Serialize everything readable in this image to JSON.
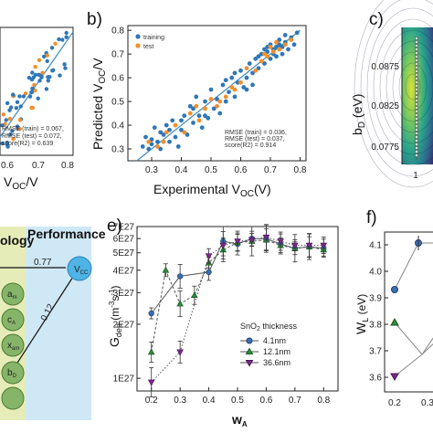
{
  "panels": {
    "b": "b)",
    "c": "c)",
    "e": "e)",
    "f": "f)"
  },
  "colors": {
    "training": "#2f77b8",
    "test": "#f28e2b",
    "fit": "#4a8fc4",
    "node": "#86b56a",
    "node_stroke": "#4b7a31",
    "vcc": "#4fb3e6",
    "perf_bg": "#cfe8f5",
    "onto_bg": "#e6ecb8",
    "s41": "#3d6fb0",
    "s121": "#2e8b3d",
    "s366": "#7a2a8a"
  },
  "panel_a": {
    "stats": [
      "RMSE (train) = 0.067,",
      "RMSE (test) = 0.072,",
      "score(R2) = 0.639"
    ],
    "xticks": [
      "0.6",
      "0.7",
      "0.8"
    ],
    "xlabel": "V",
    "xlabel_sub": "OC",
    "xlabel_tail": "/V"
  },
  "panel_d": {
    "left_label": "ology",
    "perf_label": "Performance",
    "vcc_label": "V",
    "vcc_sub": "CC",
    "edge_top": "0.77",
    "edge_diag": "0.12",
    "nodes": [
      "a_m",
      "c_A",
      "x_am",
      "b_D"
    ]
  },
  "panel_c": {
    "ylabel": "b",
    "ylabel_sub": "D",
    "ylabel_tail": " (eV)",
    "yticks": [
      "0.0875",
      "0.0825",
      "0.0775"
    ],
    "xtick": "1"
  },
  "panel_f": {
    "ylabel": "W",
    "ylabel_sub": "L",
    "ylabel_tail": " (eV)",
    "yticks": [
      "4.1",
      "4.0",
      "3.9",
      "3.8",
      "3.7",
      "3.6"
    ],
    "xticks": [
      "0.2",
      "0.3"
    ]
  },
  "chart_data": [
    {
      "type": "scatter",
      "id": "b",
      "title": "",
      "xlabel": "Experimental V",
      "xlabel_sub": "OC",
      "xlabel_tail": "(V)",
      "ylabel": "Predicted V",
      "ylabel_sub": "OC",
      "ylabel_tail": "/V",
      "xlim": [
        0.22,
        0.82
      ],
      "ylim": [
        0.25,
        0.82
      ],
      "xticks": [
        0.3,
        0.4,
        0.5,
        0.6,
        0.7,
        0.8
      ],
      "yticks": [
        0.3,
        0.4,
        0.5,
        0.6,
        0.7,
        0.8
      ],
      "legend": [
        "training",
        "test"
      ],
      "legend_position": "top-left",
      "stats": [
        "RMSE (train) = 0.036,",
        "RMSE (test) = 0.037,",
        "score(R2) = 0.914"
      ],
      "fit_line": [
        [
          0.25,
          0.25
        ],
        [
          0.8,
          0.8
        ]
      ],
      "series": [
        {
          "name": "training",
          "points": [
            [
              0.27,
              0.31
            ],
            [
              0.28,
              0.35
            ],
            [
              0.29,
              0.3
            ],
            [
              0.3,
              0.34
            ],
            [
              0.31,
              0.39
            ],
            [
              0.32,
              0.33
            ],
            [
              0.33,
              0.3
            ],
            [
              0.34,
              0.36
            ],
            [
              0.35,
              0.4
            ],
            [
              0.36,
              0.33
            ],
            [
              0.37,
              0.42
            ],
            [
              0.38,
              0.35
            ],
            [
              0.39,
              0.31
            ],
            [
              0.4,
              0.38
            ],
            [
              0.41,
              0.44
            ],
            [
              0.42,
              0.36
            ],
            [
              0.43,
              0.48
            ],
            [
              0.44,
              0.41
            ],
            [
              0.45,
              0.52
            ],
            [
              0.46,
              0.44
            ],
            [
              0.47,
              0.39
            ],
            [
              0.48,
              0.5
            ],
            [
              0.49,
              0.43
            ],
            [
              0.5,
              0.55
            ],
            [
              0.51,
              0.47
            ],
            [
              0.52,
              0.51
            ],
            [
              0.53,
              0.45
            ],
            [
              0.54,
              0.57
            ],
            [
              0.55,
              0.5
            ],
            [
              0.56,
              0.54
            ],
            [
              0.57,
              0.6
            ],
            [
              0.58,
              0.52
            ],
            [
              0.59,
              0.58
            ],
            [
              0.6,
              0.63
            ],
            [
              0.61,
              0.56
            ],
            [
              0.62,
              0.6
            ],
            [
              0.63,
              0.66
            ],
            [
              0.64,
              0.62
            ],
            [
              0.65,
              0.68
            ],
            [
              0.66,
              0.64
            ],
            [
              0.67,
              0.7
            ],
            [
              0.68,
              0.66
            ],
            [
              0.69,
              0.71
            ],
            [
              0.7,
              0.68
            ],
            [
              0.71,
              0.72
            ],
            [
              0.72,
              0.69
            ],
            [
              0.73,
              0.74
            ],
            [
              0.74,
              0.7
            ],
            [
              0.75,
              0.75
            ],
            [
              0.76,
              0.72
            ],
            [
              0.77,
              0.77
            ],
            [
              0.78,
              0.74
            ],
            [
              0.79,
              0.79
            ],
            [
              0.68,
              0.72
            ],
            [
              0.7,
              0.74
            ],
            [
              0.72,
              0.73
            ],
            [
              0.66,
              0.69
            ],
            [
              0.73,
              0.76
            ],
            [
              0.69,
              0.73
            ],
            [
              0.75,
              0.78
            ],
            [
              0.64,
              0.57
            ],
            [
              0.62,
              0.55
            ],
            [
              0.58,
              0.62
            ],
            [
              0.55,
              0.59
            ],
            [
              0.48,
              0.44
            ],
            [
              0.44,
              0.47
            ],
            [
              0.4,
              0.42
            ],
            [
              0.36,
              0.38
            ],
            [
              0.33,
              0.37
            ],
            [
              0.3,
              0.32
            ],
            [
              0.71,
              0.7
            ],
            [
              0.74,
              0.73
            ]
          ]
        },
        {
          "name": "test",
          "points": [
            [
              0.29,
              0.33
            ],
            [
              0.32,
              0.31
            ],
            [
              0.35,
              0.37
            ],
            [
              0.38,
              0.4
            ],
            [
              0.41,
              0.37
            ],
            [
              0.43,
              0.45
            ],
            [
              0.46,
              0.42
            ],
            [
              0.48,
              0.47
            ],
            [
              0.5,
              0.51
            ],
            [
              0.52,
              0.48
            ],
            [
              0.55,
              0.52
            ],
            [
              0.57,
              0.56
            ],
            [
              0.6,
              0.58
            ],
            [
              0.62,
              0.64
            ],
            [
              0.65,
              0.63
            ],
            [
              0.67,
              0.67
            ],
            [
              0.69,
              0.69
            ],
            [
              0.71,
              0.71
            ],
            [
              0.73,
              0.72
            ],
            [
              0.75,
              0.74
            ],
            [
              0.77,
              0.76
            ],
            [
              0.68,
              0.7
            ],
            [
              0.7,
              0.73
            ],
            [
              0.72,
              0.75
            ],
            [
              0.58,
              0.55
            ],
            [
              0.53,
              0.5
            ],
            [
              0.45,
              0.48
            ],
            [
              0.34,
              0.33
            ]
          ]
        }
      ]
    },
    {
      "type": "line",
      "id": "e",
      "title": "",
      "xlabel": "w",
      "xlabel_sub": "A",
      "ylabel": "G",
      "ylabel_sub": "dep",
      "ylabel_tail": " (m",
      "ylabel_sup1": "-3",
      "ylabel_mid": "s",
      "ylabel_sup2": "-1",
      "ylabel_end": ")",
      "xlim": [
        0.15,
        0.85
      ],
      "yscale": "log",
      "ylim": [
        8.5e+26,
        7e+27
      ],
      "xticks": [
        "0.2",
        "0.3",
        "0.4",
        "0.5",
        "0.6",
        "0.7",
        "0.8"
      ],
      "yticks": [
        {
          "v": 1e+27,
          "label": "1E27"
        },
        {
          "v": 2e+27,
          "label": "2E27"
        },
        {
          "v": 3e+27,
          "label": "3E27"
        },
        {
          "v": 4e+27,
          "label": "4E27"
        },
        {
          "v": 5e+27,
          "label": "5E27"
        },
        {
          "v": 6e+27,
          "label": "6E27"
        },
        {
          "v": 7e+27,
          "label": "7E27"
        }
      ],
      "legend_title": "SnO",
      "legend_title_sub": "2",
      "legend_title_tail": " thickness",
      "legend_position": "center-right",
      "series": [
        {
          "name": "4.1nm",
          "marker": "circle",
          "x": [
            0.2,
            0.3,
            0.4,
            0.45,
            0.5,
            0.55,
            0.6,
            0.65,
            0.7,
            0.75,
            0.8
          ],
          "y": [
            2.3e+27,
            3.7e+27,
            3.9e+27,
            5.8e+27,
            5.6e+27,
            6e+27,
            6e+27,
            5.6e+27,
            5.3e+27,
            5.4e+27,
            5.3e+27
          ]
        },
        {
          "name": "12.1nm",
          "marker": "triangle-up",
          "x": [
            0.2,
            0.25,
            0.3,
            0.35,
            0.4,
            0.45,
            0.5,
            0.55,
            0.6,
            0.65,
            0.7,
            0.75,
            0.8
          ],
          "y": [
            1.4e+27,
            4e+27,
            2.6e+27,
            2.9e+27,
            4.4e+27,
            5.2e+27,
            5.7e+27,
            5.8e+27,
            5.9e+27,
            5.5e+27,
            5.3e+27,
            5.4e+27,
            5.2e+27
          ]
        },
        {
          "name": "36.6nm",
          "marker": "triangle-down",
          "x": [
            0.2,
            0.3,
            0.4,
            0.45,
            0.5,
            0.55,
            0.6,
            0.65,
            0.7,
            0.75,
            0.8
          ],
          "y": [
            9.5e+26,
            1.4e+27,
            4.8e+27,
            5.5e+27,
            5.8e+27,
            5.9e+27,
            6.1e+27,
            5.8e+27,
            5.5e+27,
            5.5e+27,
            5.5e+27
          ]
        }
      ]
    }
  ]
}
